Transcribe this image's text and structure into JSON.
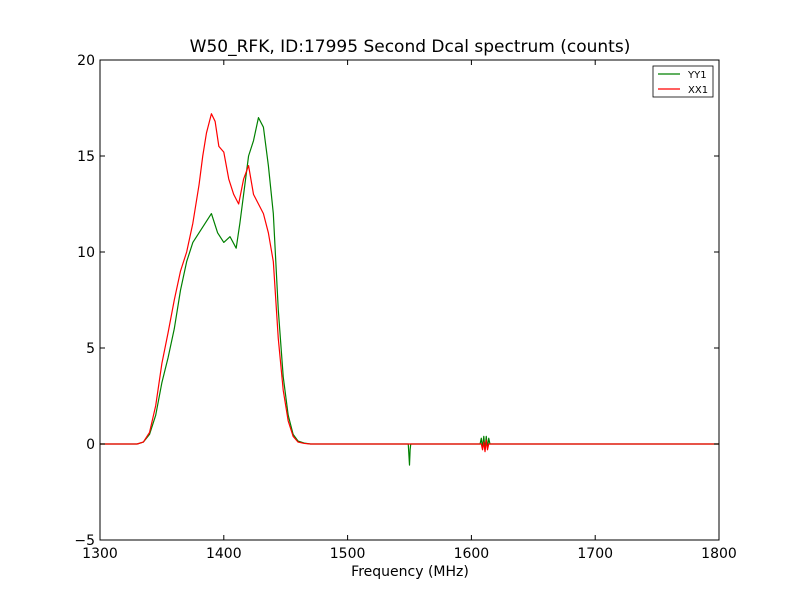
{
  "chart_data": {
    "type": "line",
    "title": "W50_RFK, ID:17995 Second Dcal spectrum (counts)",
    "xlabel": "Frequency (MHz)",
    "ylabel": "",
    "xlim": [
      1300,
      1800
    ],
    "ylim": [
      -5,
      20
    ],
    "xticks": [
      1300,
      1400,
      1500,
      1600,
      1700,
      1800
    ],
    "yticks": [
      -5,
      0,
      5,
      10,
      15,
      20
    ],
    "xtick_labels": [
      "1300",
      "1400",
      "1500",
      "1600",
      "1700",
      "1800"
    ],
    "ytick_labels": [
      "−5",
      "0",
      "5",
      "10",
      "15",
      "20"
    ],
    "grid": false,
    "legend_position": "top-right",
    "series": [
      {
        "name": "YY1",
        "color": "#008000",
        "x": [
          1300,
          1330,
          1335,
          1340,
          1345,
          1350,
          1355,
          1360,
          1365,
          1370,
          1375,
          1380,
          1385,
          1390,
          1395,
          1400,
          1405,
          1410,
          1413,
          1416,
          1420,
          1424,
          1428,
          1432,
          1436,
          1440,
          1444,
          1448,
          1452,
          1456,
          1460,
          1465,
          1470,
          1549,
          1550,
          1550.5,
          1551,
          1607,
          1608,
          1609,
          1610,
          1611,
          1612,
          1613,
          1614,
          1615,
          1800
        ],
        "y": [
          0,
          0,
          0.1,
          0.5,
          1.5,
          3.2,
          4.5,
          6.0,
          8.0,
          9.5,
          10.5,
          11.0,
          11.5,
          12.0,
          11.0,
          10.5,
          10.8,
          10.2,
          11.5,
          13.0,
          15.0,
          15.8,
          17.0,
          16.5,
          14.5,
          12.0,
          7.0,
          3.5,
          1.5,
          0.5,
          0.15,
          0.05,
          0,
          0,
          -1.1,
          -0.3,
          0,
          0,
          0.3,
          -0.2,
          0.4,
          -0.3,
          0.4,
          -0.2,
          0.3,
          0,
          0
        ]
      },
      {
        "name": "XX1",
        "color": "#ff0000",
        "x": [
          1300,
          1330,
          1335,
          1340,
          1345,
          1350,
          1355,
          1360,
          1365,
          1370,
          1375,
          1380,
          1383,
          1386,
          1390,
          1393,
          1396,
          1400,
          1404,
          1408,
          1412,
          1416,
          1420,
          1424,
          1428,
          1432,
          1436,
          1440,
          1444,
          1448,
          1452,
          1456,
          1460,
          1465,
          1470,
          1608,
          1609,
          1610,
          1611,
          1612,
          1613,
          1614,
          1800
        ],
        "y": [
          0,
          0,
          0.1,
          0.6,
          2.0,
          4.2,
          5.8,
          7.5,
          9.0,
          10.0,
          11.5,
          13.5,
          15.0,
          16.2,
          17.2,
          16.8,
          15.5,
          15.2,
          13.8,
          13.0,
          12.5,
          13.8,
          14.5,
          13.0,
          12.5,
          12.0,
          11.0,
          9.5,
          5.5,
          2.8,
          1.2,
          0.4,
          0.1,
          0.03,
          0,
          0,
          -0.3,
          0.1,
          -0.4,
          0.2,
          -0.3,
          0,
          0
        ]
      }
    ]
  }
}
